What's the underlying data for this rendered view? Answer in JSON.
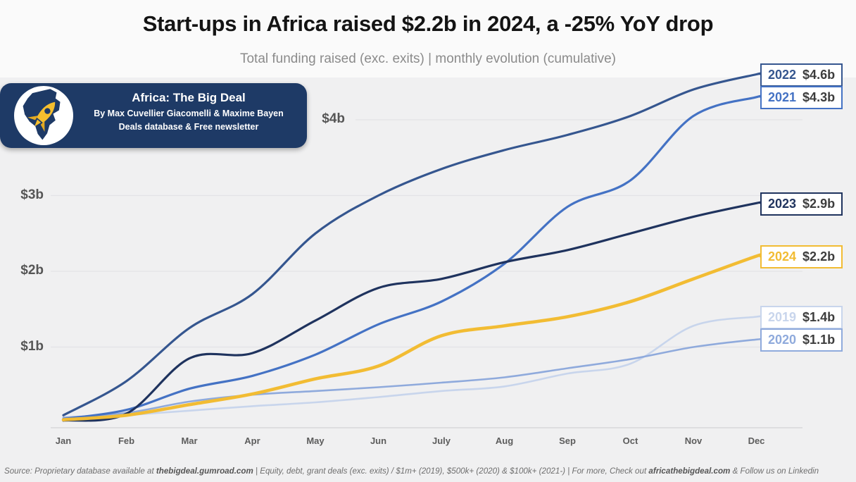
{
  "header": {
    "title": "Start-ups in Africa raised $2.2b in 2024, a -25% YoY drop",
    "subtitle": "Total funding raised (exc. exits) | monthly evolution (cumulative)"
  },
  "logo": {
    "title": "Africa: The Big Deal",
    "line1": "By Max Cuvellier Giacomelli & Maxime Bayen",
    "line2": "Deals database & Free newsletter",
    "badge_color": "#1E3A66",
    "rocket_color": "#F5BE2E"
  },
  "chart_data": {
    "type": "line",
    "title": "Total funding raised (exc. exits) | monthly evolution (cumulative)",
    "x_labels": [
      "Jan",
      "Feb",
      "Mar",
      "Apr",
      "May",
      "Jun",
      "July",
      "Aug",
      "Sep",
      "Oct",
      "Nov",
      "Dec"
    ],
    "y_ticks": [
      {
        "label": "$4b",
        "value": 4
      },
      {
        "label": "$3b",
        "value": 3
      },
      {
        "label": "$2b",
        "value": 2
      },
      {
        "label": "$1b",
        "value": 1
      }
    ],
    "ylim": [
      0,
      4.8
    ],
    "unit": "billions USD",
    "grid": "horizontal",
    "legend_position": "right",
    "series": [
      {
        "year": "2022",
        "total": "$4.6b",
        "color": "#35568F",
        "values": [
          0.1,
          0.55,
          1.25,
          1.7,
          2.5,
          3.0,
          3.35,
          3.6,
          3.8,
          4.05,
          4.4,
          4.6
        ]
      },
      {
        "year": "2021",
        "total": "$4.3b",
        "color": "#4472C4",
        "values": [
          0.05,
          0.17,
          0.45,
          0.62,
          0.9,
          1.3,
          1.6,
          2.1,
          2.85,
          3.2,
          4.05,
          4.3
        ]
      },
      {
        "year": "2023",
        "total": "$2.9b",
        "color": "#1F335E",
        "values": [
          0.03,
          0.12,
          0.85,
          0.92,
          1.35,
          1.78,
          1.9,
          2.12,
          2.28,
          2.5,
          2.72,
          2.9
        ]
      },
      {
        "year": "2024",
        "total": "$2.2b",
        "color": "#F2BC33",
        "values": [
          0.04,
          0.1,
          0.24,
          0.38,
          0.58,
          0.75,
          1.15,
          1.28,
          1.4,
          1.6,
          1.9,
          2.2
        ]
      },
      {
        "year": "2019",
        "total": "$1.4b",
        "color": "#C8D5EC",
        "values": [
          0.04,
          0.1,
          0.16,
          0.22,
          0.27,
          0.34,
          0.42,
          0.48,
          0.65,
          0.78,
          1.28,
          1.4
        ]
      },
      {
        "year": "2020",
        "total": "$1.1b",
        "color": "#8FAADC",
        "values": [
          0.07,
          0.13,
          0.28,
          0.37,
          0.42,
          0.47,
          0.53,
          0.6,
          0.72,
          0.84,
          1.0,
          1.1
        ]
      }
    ]
  },
  "footer": {
    "prefix": "Source: Proprietary database available at ",
    "bold1": "thebigdeal.gumroad.com",
    "mid": " | Equity, debt, grant deals (exc. exits) / $1m+ (2019), $500k+ (2020) & $100k+ (2021-) | For more, Check out ",
    "bold2": "africathebigdeal.com",
    "suffix": " & Follow us on Linkedin"
  },
  "colors": {
    "background": "#F0F0F1",
    "header_background": "#FAFAFA",
    "gridline": "#E3E3E6",
    "axis_line": "#D8D8DA",
    "axis_text": "#565656",
    "legend_value_text": "#3D3D3D"
  }
}
